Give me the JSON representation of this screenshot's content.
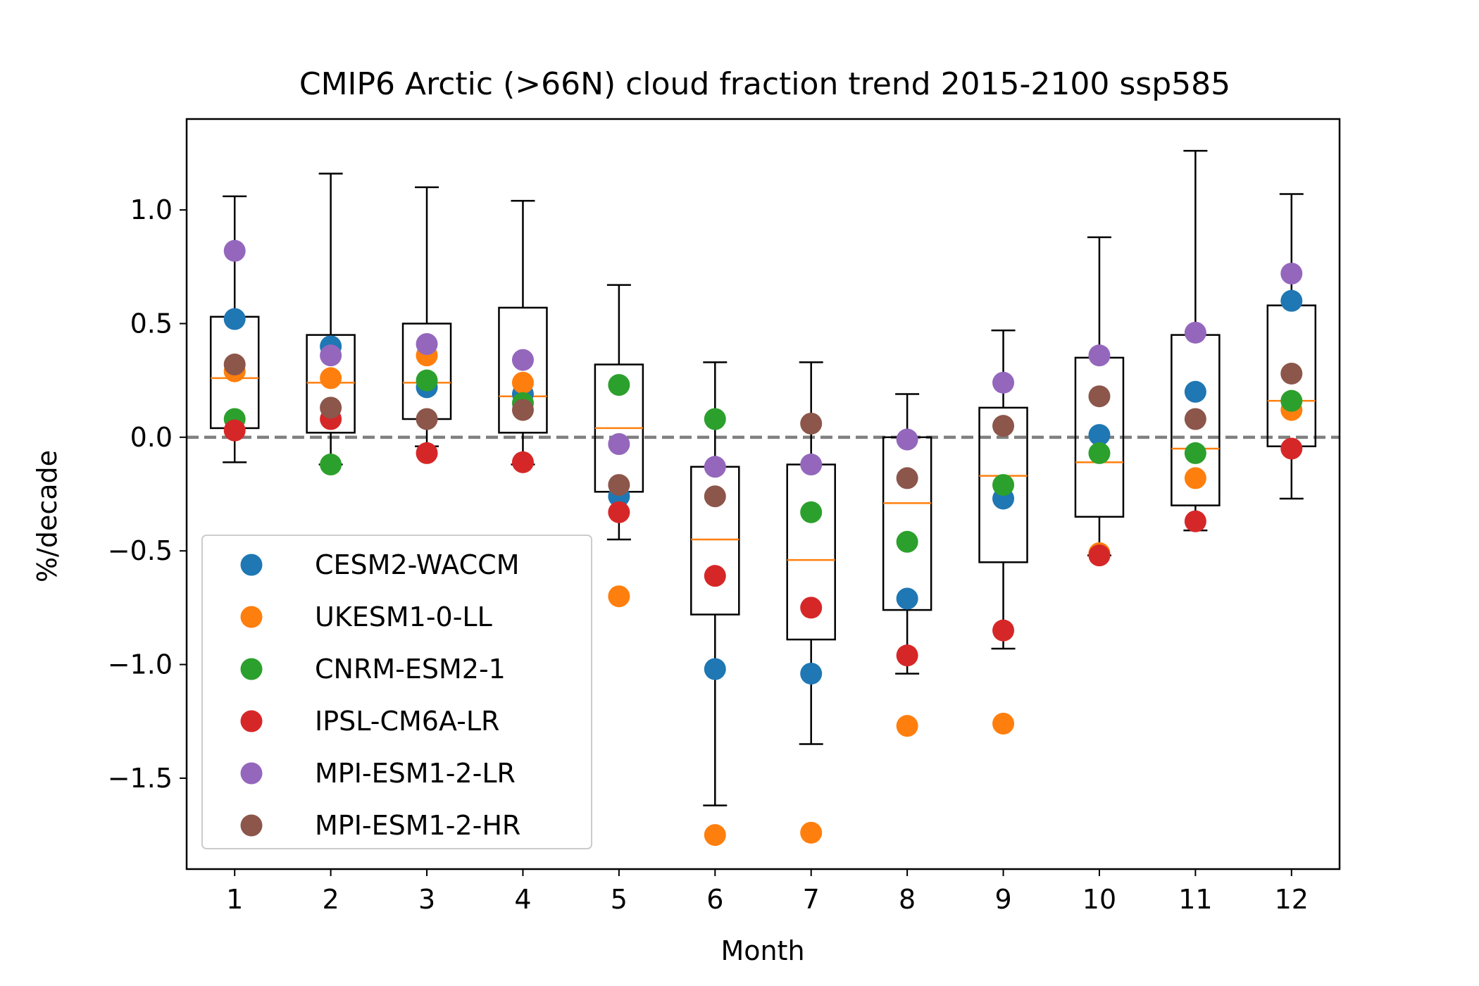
{
  "chart_data": {
    "type": "box+scatter",
    "title": "CMIP6 Arctic (>66N) cloud fraction trend 2015-2100 ssp585",
    "xlabel": "Month",
    "ylabel": "%/decade",
    "categories": [
      "1",
      "2",
      "3",
      "4",
      "5",
      "6",
      "7",
      "8",
      "9",
      "10",
      "11",
      "12"
    ],
    "xlim": [
      0.5,
      12.5
    ],
    "ylim": [
      -1.9,
      1.4
    ],
    "yticks": [
      1.0,
      0.5,
      0.0,
      -0.5,
      -1.0,
      -1.5
    ],
    "ytick_labels": [
      "1.0",
      "0.5",
      "0.0",
      "−0.5",
      "−1.0",
      "−1.5"
    ],
    "zero_line": 0.0,
    "legend_position": "lower-left",
    "boxes": [
      {
        "q1": 0.04,
        "median": 0.26,
        "q3": 0.53,
        "whisker_low": -0.11,
        "whisker_high": 1.06
      },
      {
        "q1": 0.02,
        "median": 0.24,
        "q3": 0.45,
        "whisker_low": -0.12,
        "whisker_high": 1.16
      },
      {
        "q1": 0.08,
        "median": 0.24,
        "q3": 0.5,
        "whisker_low": -0.04,
        "whisker_high": 1.1
      },
      {
        "q1": 0.02,
        "median": 0.18,
        "q3": 0.57,
        "whisker_low": -0.12,
        "whisker_high": 1.04
      },
      {
        "q1": -0.24,
        "median": 0.04,
        "q3": 0.32,
        "whisker_low": -0.45,
        "whisker_high": 0.67
      },
      {
        "q1": -0.78,
        "median": -0.45,
        "q3": -0.13,
        "whisker_low": -1.62,
        "whisker_high": 0.33
      },
      {
        "q1": -0.89,
        "median": -0.54,
        "q3": -0.12,
        "whisker_low": -1.35,
        "whisker_high": 0.33
      },
      {
        "q1": -0.76,
        "median": -0.29,
        "q3": 0.0,
        "whisker_low": -1.04,
        "whisker_high": 0.19
      },
      {
        "q1": -0.55,
        "median": -0.17,
        "q3": 0.13,
        "whisker_low": -0.93,
        "whisker_high": 0.47
      },
      {
        "q1": -0.35,
        "median": -0.11,
        "q3": 0.35,
        "whisker_low": -0.52,
        "whisker_high": 0.88
      },
      {
        "q1": -0.3,
        "median": -0.05,
        "q3": 0.45,
        "whisker_low": -0.41,
        "whisker_high": 1.26
      },
      {
        "q1": -0.04,
        "median": 0.16,
        "q3": 0.58,
        "whisker_low": -0.27,
        "whisker_high": 1.07
      }
    ],
    "series": [
      {
        "name": "CESM2-WACCM",
        "color": "#1f77b4",
        "values": [
          0.52,
          0.4,
          0.22,
          0.19,
          -0.26,
          -1.02,
          -1.04,
          -0.71,
          -0.27,
          0.01,
          0.2,
          0.6
        ]
      },
      {
        "name": "UKESM1-0-LL",
        "color": "#ff7f0e",
        "values": [
          0.29,
          0.26,
          0.36,
          0.24,
          -0.7,
          -1.75,
          -1.74,
          -1.27,
          -1.26,
          -0.51,
          -0.18,
          0.12
        ]
      },
      {
        "name": "CNRM-ESM2-1",
        "color": "#2ca02c",
        "values": [
          0.08,
          -0.12,
          0.25,
          0.15,
          0.23,
          0.08,
          -0.33,
          -0.46,
          -0.21,
          -0.07,
          -0.07,
          0.16
        ]
      },
      {
        "name": "IPSL-CM6A-LR",
        "color": "#d62728",
        "values": [
          0.03,
          0.08,
          -0.07,
          -0.11,
          -0.33,
          -0.61,
          -0.75,
          -0.96,
          -0.85,
          -0.52,
          -0.37,
          -0.05
        ]
      },
      {
        "name": "MPI-ESM1-2-LR",
        "color": "#9467bd",
        "values": [
          0.82,
          0.36,
          0.41,
          0.34,
          -0.03,
          -0.13,
          -0.12,
          -0.01,
          0.24,
          0.36,
          0.46,
          0.72
        ]
      },
      {
        "name": "MPI-ESM1-2-HR",
        "color": "#8c564b",
        "values": [
          0.32,
          0.13,
          0.08,
          0.12,
          -0.21,
          -0.26,
          0.06,
          -0.18,
          0.05,
          0.18,
          0.08,
          0.28
        ]
      }
    ]
  }
}
